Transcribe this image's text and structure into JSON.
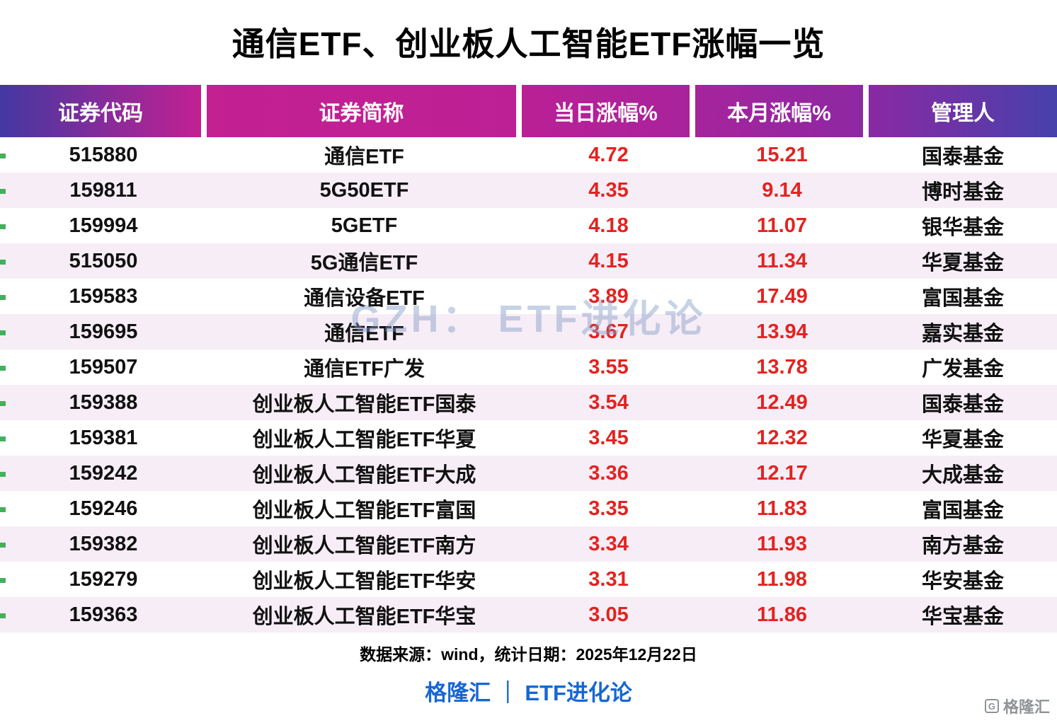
{
  "chart_data": {
    "type": "table",
    "title": "通信ETF、创业板人工智能ETF涨幅一览",
    "columns": [
      "证券代码",
      "证券简称",
      "当日涨幅%",
      "本月涨幅%",
      "管理人"
    ],
    "rows": [
      [
        "515880",
        "通信ETF",
        "4.72",
        "15.21",
        "国泰基金"
      ],
      [
        "159811",
        "5G50ETF",
        "4.35",
        "9.14",
        "博时基金"
      ],
      [
        "159994",
        "5GETF",
        "4.18",
        "11.07",
        "银华基金"
      ],
      [
        "515050",
        "5G通信ETF",
        "4.15",
        "11.34",
        "华夏基金"
      ],
      [
        "159583",
        "通信设备ETF",
        "3.89",
        "17.49",
        "富国基金"
      ],
      [
        "159695",
        "通信ETF",
        "3.67",
        "13.94",
        "嘉实基金"
      ],
      [
        "159507",
        "通信ETF广发",
        "3.55",
        "13.78",
        "广发基金"
      ],
      [
        "159388",
        "创业板人工智能ETF国泰",
        "3.54",
        "12.49",
        "国泰基金"
      ],
      [
        "159381",
        "创业板人工智能ETF华夏",
        "3.45",
        "12.32",
        "华夏基金"
      ],
      [
        "159242",
        "创业板人工智能ETF大成",
        "3.36",
        "12.17",
        "大成基金"
      ],
      [
        "159246",
        "创业板人工智能ETF富国",
        "3.35",
        "11.83",
        "富国基金"
      ],
      [
        "159382",
        "创业板人工智能ETF南方",
        "3.34",
        "11.93",
        "南方基金"
      ],
      [
        "159279",
        "创业板人工智能ETF华安",
        "3.31",
        "11.98",
        "华安基金"
      ],
      [
        "159363",
        "创业板人工智能ETF华宝",
        "3.05",
        "11.86",
        "华宝基金"
      ]
    ]
  },
  "watermark": "GZH：  ETF进化论",
  "footer": {
    "source": "数据来源：wind，统计日期：2025年12月22日",
    "brand": "格隆汇 ｜ ETF进化论"
  },
  "corner_logo": {
    "label": "格隆汇",
    "icon_glyph": "G"
  },
  "colors": {
    "gain_red": "#e32320",
    "brand_blue": "#1767d2",
    "header_indigo_left": "#4338a2",
    "header_magenta": "#c32092",
    "header_indigo_right": "#4741ab",
    "row_alt": "#f7edf6",
    "tick_green": "#43b05c"
  }
}
